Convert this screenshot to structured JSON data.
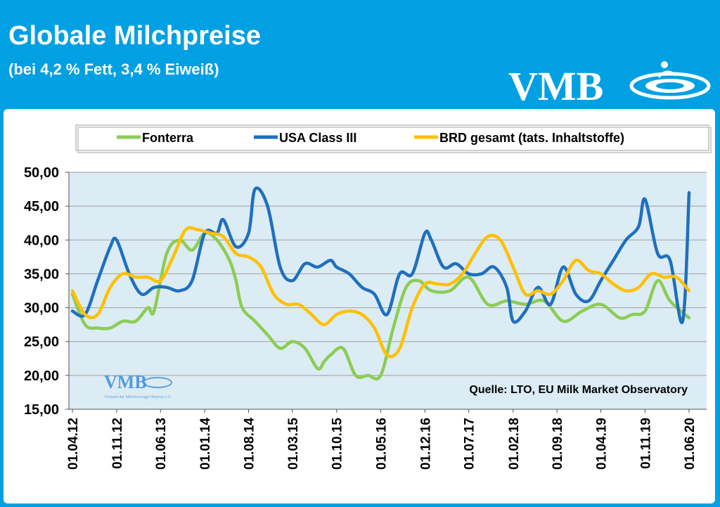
{
  "header": {
    "title": "Globale Milchpreise",
    "subtitle": "(bei 4,2 % Fett, 3,4 % Eiweiß)",
    "logo_text": "VMB",
    "watermark_text": "VMB",
    "watermark_caption": "Verband der Milcherzeuger Bayern e.V."
  },
  "colors": {
    "background": "#00a0e3",
    "plot_area": "#dcecf4",
    "fonterra": "#8bcd55",
    "usa": "#1f6fbf",
    "brd": "#ffc000"
  },
  "chart_data": {
    "type": "line",
    "title": "",
    "xlabel": "",
    "ylabel": "",
    "ylim": [
      15,
      50
    ],
    "yticks": [
      "15,00",
      "20,00",
      "25,00",
      "30,00",
      "35,00",
      "40,00",
      "45,00",
      "50,00"
    ],
    "ytick_values": [
      15,
      20,
      25,
      30,
      35,
      40,
      45,
      50
    ],
    "xlim": [
      "2012-04-01",
      "2020-06-01"
    ],
    "xticks": [
      "01.04.12",
      "01.11.12",
      "01.06.13",
      "01.01.14",
      "01.08.14",
      "01.03.15",
      "01.10.15",
      "01.05.16",
      "01.12.16",
      "01.07.17",
      "01.02.18",
      "01.09.18",
      "01.04.19",
      "01.11.19",
      "01.06.20"
    ],
    "xtick_dates": [
      "2012-04-01",
      "2012-11-01",
      "2013-06-01",
      "2014-01-01",
      "2014-08-01",
      "2015-03-01",
      "2015-10-01",
      "2016-05-01",
      "2016-12-01",
      "2017-07-01",
      "2018-02-01",
      "2018-09-01",
      "2019-04-01",
      "2019-11-01",
      "2020-06-01"
    ],
    "grid": true,
    "legend_position": "top",
    "source": "Quelle:  LTO, EU Milk Market Observatory",
    "series": [
      {
        "name": "Fonterra",
        "x": [
          "2012-04-01",
          "2012-06-01",
          "2012-08-01",
          "2012-10-01",
          "2012-12-01",
          "2013-02-01",
          "2013-04-01",
          "2013-05-01",
          "2013-07-01",
          "2013-09-01",
          "2013-11-01",
          "2014-01-01",
          "2014-03-01",
          "2014-05-01",
          "2014-06-01",
          "2014-07-01",
          "2014-09-01",
          "2014-11-01",
          "2015-01-01",
          "2015-03-01",
          "2015-05-01",
          "2015-07-01",
          "2015-08-01",
          "2015-09-01",
          "2015-11-01",
          "2016-01-01",
          "2016-03-01",
          "2016-05-01",
          "2016-07-01",
          "2016-09-01",
          "2016-11-01",
          "2017-01-01",
          "2017-04-01",
          "2017-07-01",
          "2017-10-01",
          "2018-01-01",
          "2018-04-01",
          "2018-07-01",
          "2018-10-01",
          "2019-01-01",
          "2019-04-01",
          "2019-07-01",
          "2019-09-01",
          "2019-11-01",
          "2020-01-01",
          "2020-03-01",
          "2020-06-01"
        ],
        "y": [
          32,
          27.5,
          27,
          27,
          28,
          28,
          30,
          29.5,
          38,
          40,
          38.5,
          41,
          40,
          37,
          34,
          30,
          28,
          26,
          24,
          25,
          24,
          21,
          22,
          23,
          24,
          20,
          20,
          20,
          27,
          33,
          34,
          32.5,
          32.5,
          34.5,
          30.5,
          31,
          30.5,
          31,
          28,
          29.5,
          30.5,
          28.5,
          29,
          29.5,
          34,
          31,
          28.5
        ]
      },
      {
        "name": "USA Class III",
        "x": [
          "2012-04-01",
          "2012-06-01",
          "2012-08-01",
          "2012-10-01",
          "2012-11-01",
          "2013-01-01",
          "2013-03-01",
          "2013-05-01",
          "2013-07-01",
          "2013-09-01",
          "2013-11-01",
          "2014-01-01",
          "2014-03-01",
          "2014-04-01",
          "2014-06-01",
          "2014-08-01",
          "2014-09-01",
          "2014-11-01",
          "2015-01-01",
          "2015-03-01",
          "2015-05-01",
          "2015-07-01",
          "2015-09-01",
          "2015-10-01",
          "2015-12-01",
          "2016-02-01",
          "2016-04-01",
          "2016-06-01",
          "2016-08-01",
          "2016-10-01",
          "2016-12-01",
          "2017-01-01",
          "2017-03-01",
          "2017-05-01",
          "2017-07-01",
          "2017-09-01",
          "2017-11-01",
          "2018-01-01",
          "2018-02-01",
          "2018-04-01",
          "2018-06-01",
          "2018-08-01",
          "2018-10-01",
          "2018-12-01",
          "2019-02-01",
          "2019-04-01",
          "2019-06-01",
          "2019-08-01",
          "2019-10-01",
          "2019-11-01",
          "2020-01-01",
          "2020-03-01",
          "2020-05-01",
          "2020-06-01"
        ],
        "y": [
          29.5,
          29,
          34,
          39,
          40,
          35,
          32,
          33,
          33,
          32.5,
          34,
          41,
          41,
          43,
          39,
          41,
          47.5,
          45,
          36,
          34,
          36.5,
          36,
          37,
          36,
          35,
          33,
          32,
          29,
          35,
          35,
          41,
          40,
          36,
          36.5,
          35,
          35,
          36,
          33,
          28,
          29.5,
          33,
          30.5,
          36,
          32,
          31,
          34,
          37,
          40,
          42,
          46,
          38,
          37,
          28,
          47
        ]
      },
      {
        "name": "BRD gesamt (tats. Inhaltstoffe)",
        "x": [
          "2012-04-01",
          "2012-06-01",
          "2012-08-01",
          "2012-10-01",
          "2012-12-01",
          "2013-02-01",
          "2013-04-01",
          "2013-06-01",
          "2013-08-01",
          "2013-10-01",
          "2013-12-01",
          "2014-02-01",
          "2014-04-01",
          "2014-06-01",
          "2014-08-01",
          "2014-10-01",
          "2014-12-01",
          "2015-02-01",
          "2015-04-01",
          "2015-06-01",
          "2015-08-01",
          "2015-10-01",
          "2015-12-01",
          "2016-02-01",
          "2016-04-01",
          "2016-06-01",
          "2016-08-01",
          "2016-10-01",
          "2016-12-01",
          "2017-02-01",
          "2017-04-01",
          "2017-06-01",
          "2017-08-01",
          "2017-10-01",
          "2017-12-01",
          "2018-02-01",
          "2018-04-01",
          "2018-06-01",
          "2018-08-01",
          "2018-10-01",
          "2018-12-01",
          "2019-02-01",
          "2019-04-01",
          "2019-06-01",
          "2019-08-01",
          "2019-10-01",
          "2019-12-01",
          "2020-02-01",
          "2020-04-01",
          "2020-06-01"
        ],
        "y": [
          32.5,
          29,
          29,
          33,
          35,
          34.5,
          34.5,
          34,
          37.5,
          41.5,
          41.5,
          41,
          40.5,
          38,
          37.5,
          36,
          32,
          30.5,
          30.5,
          29,
          27.5,
          29,
          29.5,
          29,
          27,
          23,
          24,
          30,
          33.5,
          33.5,
          33.5,
          35,
          38,
          40.5,
          40,
          36,
          32,
          32.5,
          32,
          34,
          37,
          35.5,
          35,
          33.5,
          32.5,
          33,
          35,
          34.5,
          34.5,
          32.5
        ]
      }
    ]
  }
}
